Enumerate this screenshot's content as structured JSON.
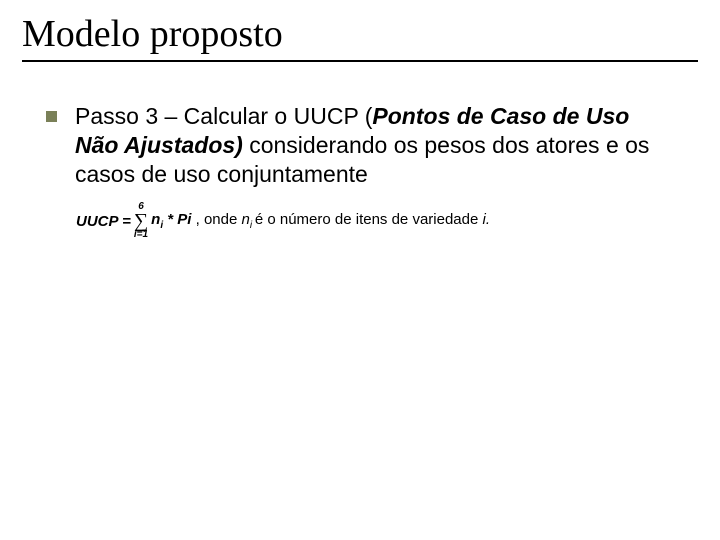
{
  "slide": {
    "title": "Modelo proposto",
    "title_fontsize": 38,
    "title_color": "#000000",
    "underline_color": "#000000",
    "bullet_color": "#7a8058",
    "background_color": "#ffffff",
    "body_fontsize": 23,
    "bullet": {
      "pre": "Passo 3 – Calcular o UUCP (",
      "emph": "Pontos de Caso de Uso Não Ajustados)",
      "post": "  considerando os pesos dos atores e os casos de uso conjuntamente"
    },
    "formula": {
      "fontsize": 15,
      "lead": "UUCP = ",
      "sigma_top": "6",
      "sigma": "∑",
      "sigma_bot": "i=1",
      "term_n": "n",
      "term_n_sub": "i",
      "star": " * ",
      "term_p": "Pi ",
      "onde": ", onde ",
      "n2": "n",
      "n2_sub": "i ",
      "tail": "é o número de itens de variedade ",
      "ivar": "i.",
      "sigma_fontsize": 20,
      "script_fontsize": 10
    }
  }
}
